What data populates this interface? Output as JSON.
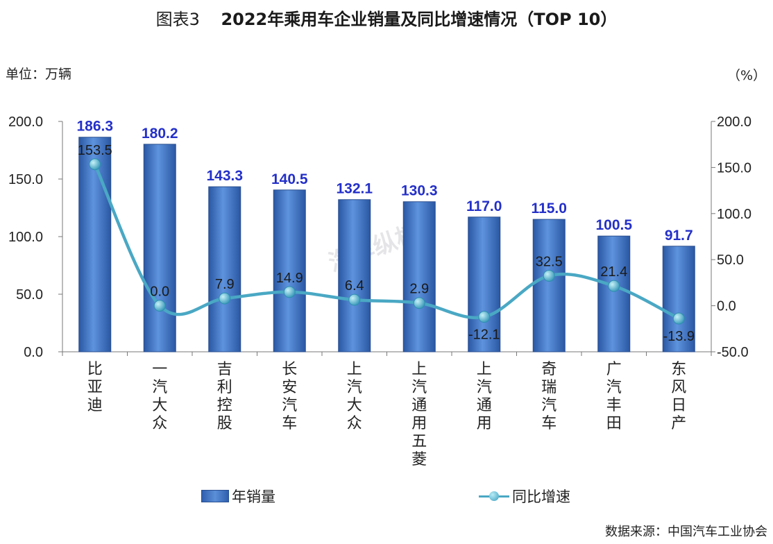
{
  "title": {
    "prefix": "图表3",
    "main": "2022年乘用车企业销量及同比增速情况（TOP 10）"
  },
  "unit_left": "单位：万辆",
  "unit_right": "（%）",
  "source": "数据来源：中国汽车工业协会",
  "watermark": "汽车纵横",
  "chart_data": {
    "type": "bar",
    "categories": [
      "比亚迪",
      "一汽大众",
      "吉利控股",
      "长安汽车",
      "上汽大众",
      "上汽通用五菱",
      "上汽通用",
      "奇瑞汽车",
      "广汽丰田",
      "东风日产"
    ],
    "series": [
      {
        "name": "年销量",
        "type": "bar",
        "axis": "left",
        "values": [
          186.3,
          180.2,
          143.3,
          140.5,
          132.1,
          130.3,
          117.0,
          115.0,
          100.5,
          91.7
        ],
        "labels": [
          "186.3",
          "180.2",
          "143.3",
          "140.5",
          "132.1",
          "130.3",
          "117.0",
          "115.0",
          "100.5",
          "91.7"
        ]
      },
      {
        "name": "同比增速",
        "type": "line",
        "axis": "right",
        "values": [
          153.5,
          0.0,
          7.9,
          14.9,
          6.4,
          2.9,
          -12.1,
          32.5,
          21.4,
          -13.9
        ],
        "labels": [
          "153.5",
          "0.0",
          "7.9",
          "14.9",
          "6.4",
          "2.9",
          "-12.1",
          "32.5",
          "21.4",
          "-13.9"
        ]
      }
    ],
    "y_left": {
      "ylim": [
        0,
        200
      ],
      "ticks": [
        "0.0",
        "50.0",
        "100.0",
        "150.0",
        "200.0"
      ]
    },
    "y_right": {
      "ylim": [
        -50,
        200
      ],
      "ticks": [
        "-50.0",
        "0.0",
        "50.0",
        "100.0",
        "150.0",
        "200.0"
      ]
    },
    "grid": false,
    "legend": "bottom",
    "colors": {
      "bar": "#3b6fc0",
      "bar_label": "#2430c8",
      "line": "#4aa8c4",
      "marker": "#3a9fbf"
    }
  }
}
